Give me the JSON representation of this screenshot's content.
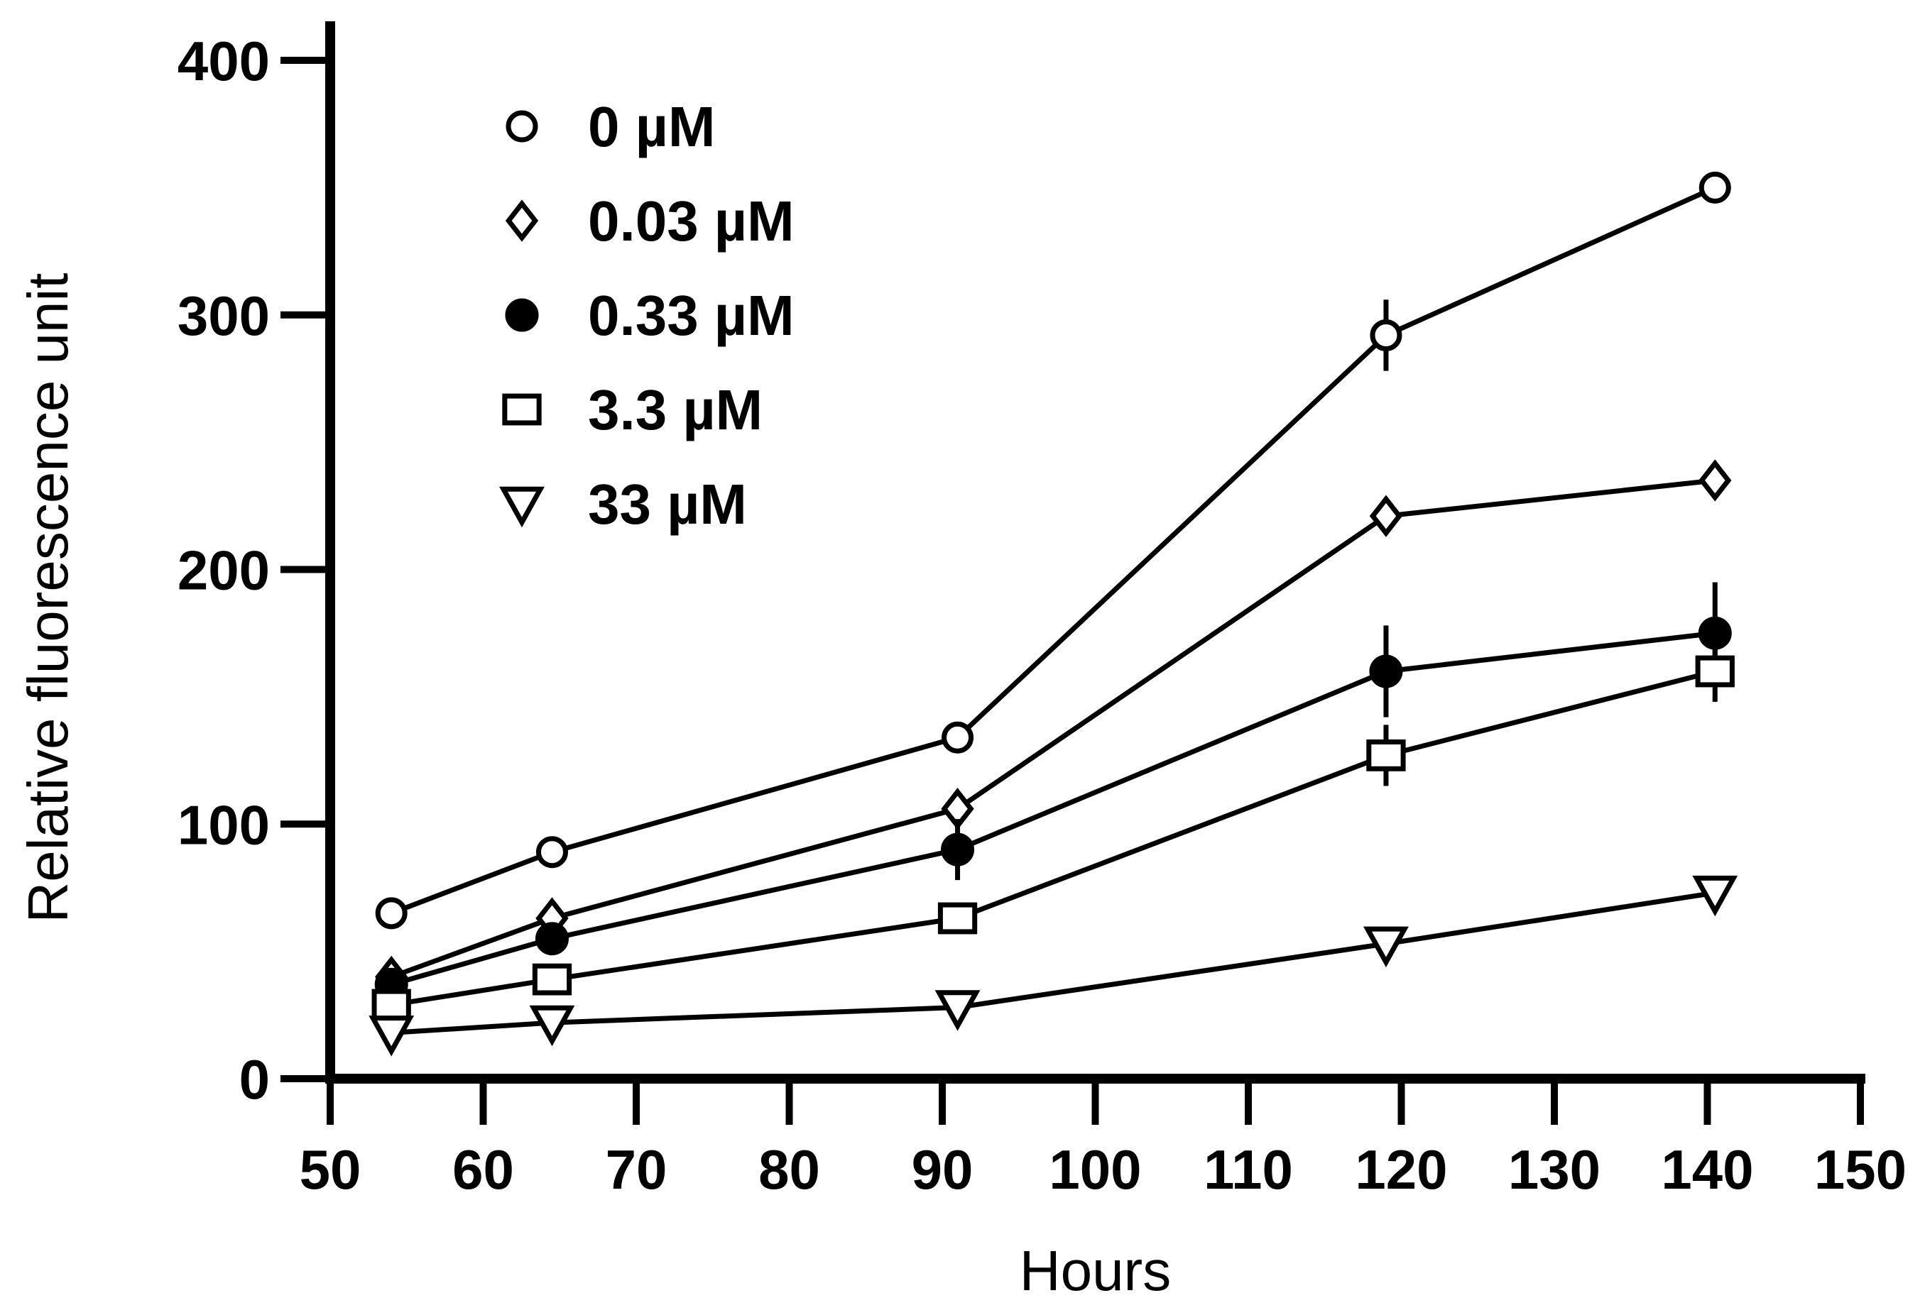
{
  "chart_data": {
    "type": "line",
    "title": "",
    "xlabel": "Hours",
    "ylabel": "Relative fluorescence unit",
    "xlim": [
      50,
      150
    ],
    "ylim": [
      0,
      400
    ],
    "xticks": [
      "50",
      "60",
      "70",
      "80",
      "90",
      "100",
      "110",
      "120",
      "130",
      "140",
      "150"
    ],
    "yticks": [
      "0",
      "100",
      "200",
      "300",
      "400"
    ],
    "x": [
      54,
      64.5,
      91,
      119,
      140.5
    ],
    "legend_position": "top-left",
    "series": [
      {
        "name": "0 µM",
        "marker": "open-circle",
        "values": [
          65,
          89,
          134,
          292,
          350
        ],
        "errors": [
          0,
          0,
          0,
          14,
          0
        ]
      },
      {
        "name": "0.03 µM",
        "marker": "open-diamond",
        "values": [
          40,
          63,
          106,
          221,
          235
        ],
        "errors": [
          0,
          0,
          0,
          0,
          0
        ]
      },
      {
        "name": "0.33 µM",
        "marker": "filled-circle",
        "values": [
          37,
          55,
          90,
          160,
          175
        ],
        "errors": [
          0,
          0,
          12,
          18,
          20
        ]
      },
      {
        "name": "3.3 µM",
        "marker": "open-square",
        "values": [
          29,
          39,
          63,
          127,
          160
        ],
        "errors": [
          0,
          0,
          0,
          12,
          12
        ]
      },
      {
        "name": "33 µM",
        "marker": "open-triangle-down",
        "values": [
          18,
          22,
          28,
          53,
          73
        ],
        "errors": [
          0,
          0,
          0,
          0,
          0
        ]
      }
    ]
  }
}
